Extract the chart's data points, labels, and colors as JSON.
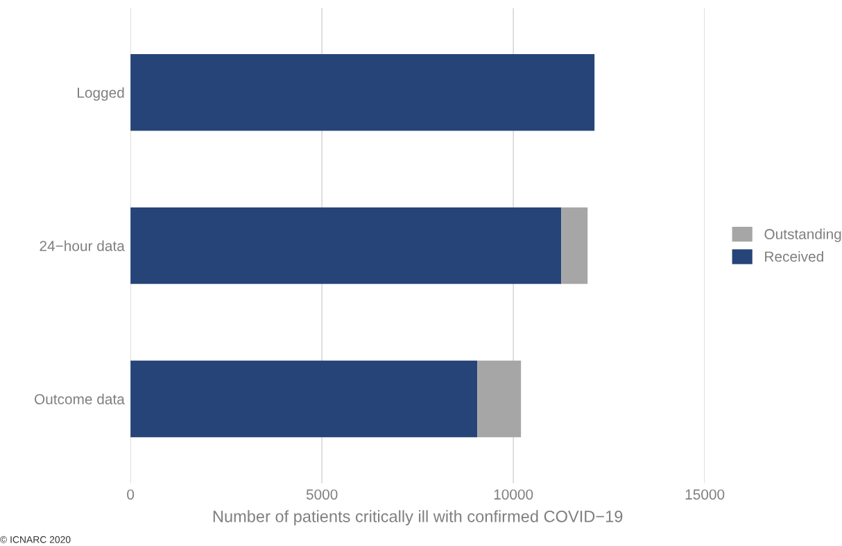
{
  "chart_data": {
    "type": "bar",
    "orientation": "horizontal",
    "stacked": true,
    "categories": [
      "Logged",
      "24−hour data",
      "Outcome data"
    ],
    "series": [
      {
        "name": "Received",
        "color": "#264478",
        "values": [
          12120,
          11250,
          9060
        ]
      },
      {
        "name": "Outstanding",
        "color": "#a6a6a6",
        "values": [
          null,
          690,
          1140
        ]
      }
    ],
    "xlim": [
      0,
      15000
    ],
    "xticks": [
      0,
      5000,
      10000,
      15000
    ],
    "xlabel": "Number of patients critically ill with confirmed COVID−19",
    "grid": "x",
    "legend": "right",
    "annotations": [
      "© ICNARC 2020"
    ]
  }
}
